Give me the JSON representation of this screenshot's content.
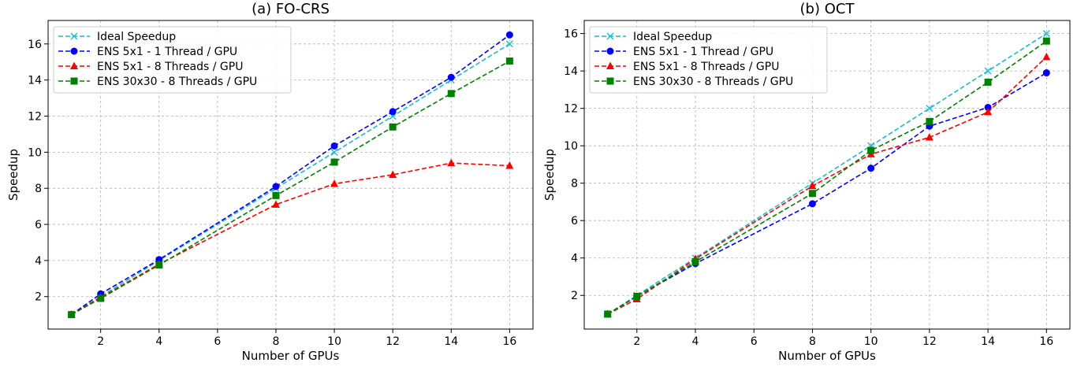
{
  "chart_data": [
    {
      "type": "line",
      "title": "(a) FO-CRS",
      "xlabel": "Number of GPUs",
      "ylabel": "Speedup",
      "xlim": [
        0.2,
        16.8
      ],
      "ylim": [
        0.2,
        17.3
      ],
      "xticks": [
        2,
        4,
        6,
        8,
        10,
        12,
        14,
        16
      ],
      "yticks": [
        2,
        4,
        6,
        8,
        10,
        12,
        14,
        16
      ],
      "grid": true,
      "legend_position": "top-left",
      "series": [
        {
          "name": "Ideal Speedup",
          "color": "#17becf",
          "marker": "x",
          "x": [
            1,
            2,
            4,
            8,
            10,
            12,
            14,
            16
          ],
          "y": [
            1,
            2,
            4,
            8,
            10,
            12,
            14,
            16
          ]
        },
        {
          "name": "ENS 5x1 - 1 Thread / GPU",
          "color": "#0000ff",
          "marker": "o",
          "x": [
            1,
            2,
            4,
            8,
            10,
            12,
            14,
            16
          ],
          "y": [
            1,
            2.15,
            4.05,
            8.1,
            10.35,
            12.25,
            14.15,
            16.5
          ]
        },
        {
          "name": "ENS 5x1 - 8 Threads / GPU",
          "color": "#ff0000",
          "marker": "^",
          "x": [
            1,
            2,
            4,
            8,
            10,
            12,
            14,
            16
          ],
          "y": [
            1,
            1.95,
            3.8,
            7.1,
            8.25,
            8.75,
            9.4,
            9.25
          ]
        },
        {
          "name": "ENS 30x30 - 8 Threads / GPU",
          "color": "#008000",
          "marker": "s",
          "x": [
            1,
            2,
            4,
            8,
            10,
            12,
            14,
            16
          ],
          "y": [
            1,
            1.9,
            3.75,
            7.6,
            9.45,
            11.4,
            13.25,
            15.05
          ]
        }
      ]
    },
    {
      "type": "line",
      "title": "(b) OCT",
      "xlabel": "Number of GPUs",
      "ylabel": "Speedup",
      "xlim": [
        0.2,
        16.8
      ],
      "ylim": [
        0.2,
        16.7
      ],
      "xticks": [
        2,
        4,
        6,
        8,
        10,
        12,
        14,
        16
      ],
      "yticks": [
        2,
        4,
        6,
        8,
        10,
        12,
        14,
        16
      ],
      "grid": true,
      "legend_position": "top-left",
      "series": [
        {
          "name": "Ideal Speedup",
          "color": "#17becf",
          "marker": "x",
          "x": [
            1,
            2,
            4,
            8,
            10,
            12,
            14,
            16
          ],
          "y": [
            1,
            2,
            4,
            8,
            10,
            12,
            14,
            16
          ]
        },
        {
          "name": "ENS 5x1 - 1 Thread / GPU",
          "color": "#0000ff",
          "marker": "o",
          "x": [
            1,
            2,
            4,
            8,
            10,
            12,
            14,
            16
          ],
          "y": [
            1,
            1.95,
            3.7,
            6.9,
            8.8,
            11.05,
            12.05,
            13.9
          ]
        },
        {
          "name": "ENS 5x1 - 8 Threads / GPU",
          "color": "#ff0000",
          "marker": "^",
          "x": [
            1,
            2,
            4,
            8,
            10,
            12,
            14,
            16
          ],
          "y": [
            1,
            1.8,
            3.95,
            7.85,
            9.55,
            10.45,
            11.8,
            14.75
          ]
        },
        {
          "name": "ENS 30x30 - 8 Threads / GPU",
          "color": "#008000",
          "marker": "s",
          "x": [
            1,
            2,
            4,
            8,
            10,
            12,
            14,
            16
          ],
          "y": [
            1,
            1.95,
            3.8,
            7.45,
            9.75,
            11.3,
            13.4,
            15.6
          ]
        }
      ]
    }
  ]
}
